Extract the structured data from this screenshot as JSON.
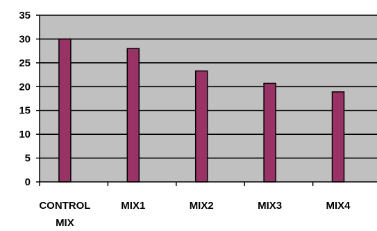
{
  "chart_data": {
    "type": "bar",
    "categories": [
      [
        "CONTROL",
        "MIX"
      ],
      [
        "MIX1"
      ],
      [
        "MIX2"
      ],
      [
        "MIX3"
      ],
      [
        "MIX4"
      ]
    ],
    "values": [
      30,
      28,
      23.3,
      20.7,
      18.9
    ],
    "ylim": [
      0,
      35
    ],
    "yticks": [
      "0",
      "5",
      "10",
      "15",
      "20",
      "25",
      "30",
      "35"
    ],
    "grid": true,
    "legend": "none",
    "colors": {
      "plot_background": "#c0c0c0",
      "bar_fill": "#993366",
      "bar_stroke": "#000000",
      "gridline": "#000000"
    }
  }
}
